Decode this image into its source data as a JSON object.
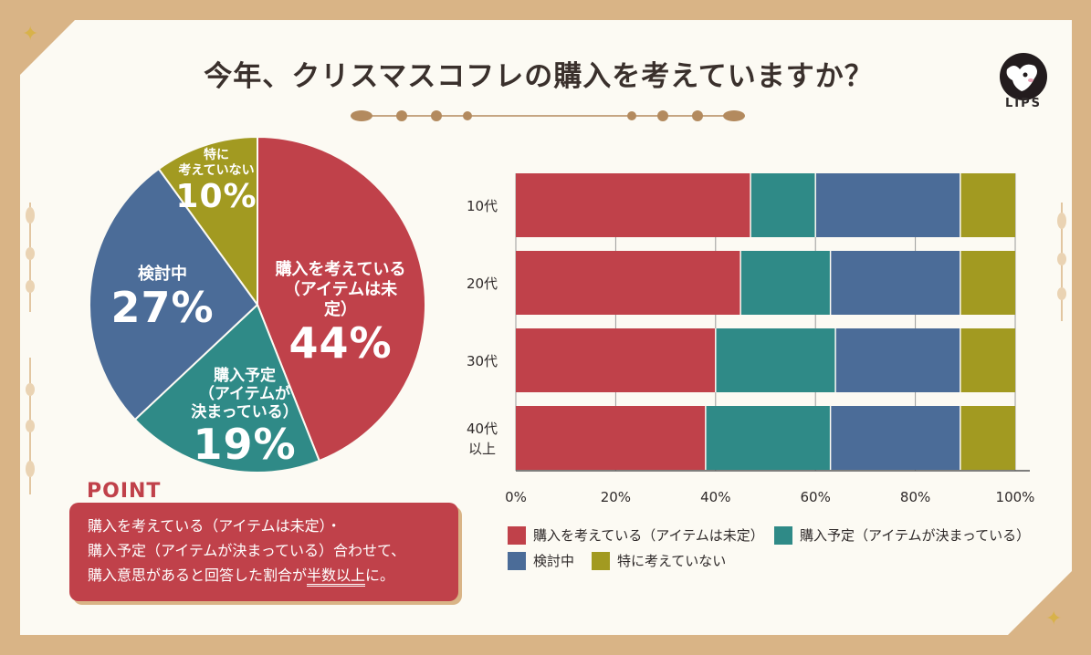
{
  "title": "今年、クリスマスコフレの購入を考えていますか？",
  "logo": "LIPS",
  "colors": {
    "red": "#c0414a",
    "teal": "#2f8a87",
    "blue": "#4b6c98",
    "olive": "#a29a21"
  },
  "pie": {
    "slices": [
      {
        "key": "red",
        "label": "購入を考えている",
        "sub": "（アイテムは未定）",
        "value": 44,
        "pct": "44%"
      },
      {
        "key": "teal",
        "label": "購入予定",
        "sub": "（アイテムが",
        "sub2": "決まっている）",
        "value": 19,
        "pct": "19%"
      },
      {
        "key": "blue",
        "label": "検討中",
        "value": 27,
        "pct": "27%"
      },
      {
        "key": "olive",
        "label": "特に",
        "sub": "考えていない",
        "value": 10,
        "pct": "10%"
      }
    ]
  },
  "chart_data": {
    "type": "bar",
    "orientation": "horizontal",
    "stacked": true,
    "categories": [
      "10代",
      "20代",
      "30代",
      "40代以上"
    ],
    "category_lines": [
      [
        "10代"
      ],
      [
        "20代"
      ],
      [
        "30代"
      ],
      [
        "40代",
        "以上"
      ]
    ],
    "series": [
      {
        "name": "購入を考えている（アイテムは未定）",
        "color": "#c0414a",
        "values": [
          47,
          45,
          40,
          38
        ]
      },
      {
        "name": "購入予定（アイテムが決まっている）",
        "color": "#2f8a87",
        "values": [
          13,
          18,
          24,
          25
        ]
      },
      {
        "name": "検討中",
        "color": "#4b6c98",
        "values": [
          29,
          26,
          25,
          26
        ]
      },
      {
        "name": "特に考えていない",
        "color": "#a29a21",
        "values": [
          11,
          11,
          11,
          11
        ]
      }
    ],
    "xlim": [
      0,
      100
    ],
    "xticks": [
      "0%",
      "20%",
      "40%",
      "60%",
      "80%",
      "100%"
    ],
    "grid": true,
    "legend_position": "bottom"
  },
  "legend": [
    {
      "label": "購入を考えている（アイテムは未定）",
      "color": "#c0414a"
    },
    {
      "label": "購入予定（アイテムが決まっている）",
      "color": "#2f8a87"
    },
    {
      "label": "検討中",
      "color": "#4b6c98"
    },
    {
      "label": "特に考えていない",
      "color": "#a29a21"
    }
  ],
  "point": {
    "title": "POINT",
    "line1": "購入を考えている（アイテムは未定）・",
    "line2": "購入予定（アイテムが決まっている）合わせて、",
    "line3a": "購入意思があると回答した割合が",
    "line3b": "半数以上",
    "line3c": "に。"
  }
}
